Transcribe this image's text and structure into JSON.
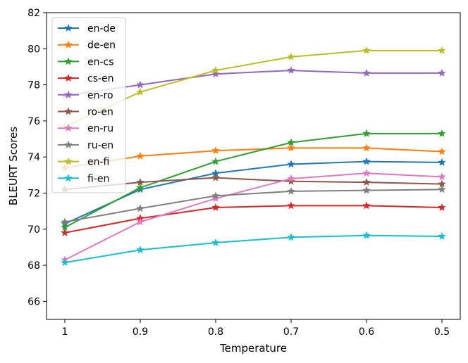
{
  "chart_data": {
    "type": "line",
    "title": "",
    "xlabel": "Temperature",
    "ylabel": "BLEURT Scores",
    "x": [
      1,
      0.9,
      0.8,
      0.7,
      0.6,
      0.5
    ],
    "x_tick_labels": [
      "1",
      "0.9",
      "0.8",
      "0.7",
      "0.6",
      "0.5"
    ],
    "ylim": [
      65,
      82
    ],
    "y_ticks": [
      66,
      68,
      70,
      72,
      74,
      76,
      78,
      80,
      82
    ],
    "legend_position": "top-left",
    "marker": "star",
    "series": [
      {
        "name": "en-de",
        "color": "#1f77b4",
        "values": [
          70.3,
          72.2,
          73.1,
          73.6,
          73.75,
          73.7
        ]
      },
      {
        "name": "de-en",
        "color": "#ff7f0e",
        "values": [
          73.4,
          74.05,
          74.35,
          74.5,
          74.5,
          74.3
        ]
      },
      {
        "name": "en-cs",
        "color": "#2ca02c",
        "values": [
          70.1,
          72.3,
          73.75,
          74.8,
          75.3,
          75.3
        ]
      },
      {
        "name": "cs-en",
        "color": "#d62728",
        "values": [
          69.8,
          70.6,
          71.2,
          71.3,
          71.3,
          71.2
        ]
      },
      {
        "name": "en-ro",
        "color": "#9467bd",
        "values": [
          77.4,
          78.0,
          78.6,
          78.8,
          78.65,
          78.65
        ]
      },
      {
        "name": "ro-en",
        "color": "#8c564b",
        "values": [
          72.2,
          72.6,
          72.85,
          72.65,
          72.6,
          72.5
        ]
      },
      {
        "name": "en-ru",
        "color": "#e377c2",
        "values": [
          68.3,
          70.4,
          71.7,
          72.8,
          73.1,
          72.9
        ]
      },
      {
        "name": "ru-en",
        "color": "#7f7f7f",
        "values": [
          70.4,
          71.15,
          71.85,
          72.1,
          72.15,
          72.2
        ]
      },
      {
        "name": "en-fi",
        "color": "#bcbd22",
        "values": [
          75.7,
          77.6,
          78.8,
          79.55,
          79.9,
          79.9
        ]
      },
      {
        "name": "fi-en",
        "color": "#17becf",
        "values": [
          68.15,
          68.85,
          69.25,
          69.55,
          69.65,
          69.6
        ]
      }
    ]
  }
}
